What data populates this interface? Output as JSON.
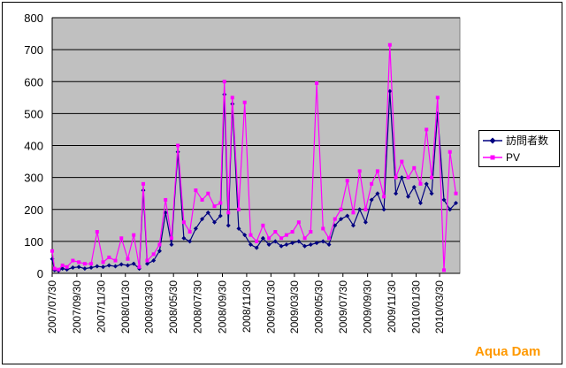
{
  "chart_data": {
    "type": "line",
    "title": "",
    "xlabel": "",
    "ylabel": "",
    "ylim": [
      0,
      800
    ],
    "yticks": [
      0,
      100,
      200,
      300,
      400,
      500,
      600,
      700,
      800
    ],
    "xlim": [
      "2007-07-30",
      "2010-05-20"
    ],
    "xticks": [
      "2007/07/30",
      "2007/09/30",
      "2007/11/30",
      "2008/01/30",
      "2008/03/30",
      "2008/05/30",
      "2008/07/30",
      "2008/09/30",
      "2008/11/30",
      "2009/01/30",
      "2009/03/30",
      "2009/05/30",
      "2009/07/30",
      "2009/09/30",
      "2009/11/30",
      "2010/01/30",
      "2010/03/30"
    ],
    "grid": "horizontal",
    "legend_position": "right",
    "plot_background": "#c0c0c0",
    "series": [
      {
        "name": "訪問者数",
        "color": "#000080",
        "marker": "diamond",
        "points": [
          [
            "2007-07-30",
            45
          ],
          [
            "2007-08-05",
            10
          ],
          [
            "2007-08-15",
            8
          ],
          [
            "2007-08-25",
            15
          ],
          [
            "2007-09-05",
            12
          ],
          [
            "2007-09-20",
            18
          ],
          [
            "2007-10-05",
            20
          ],
          [
            "2007-10-20",
            15
          ],
          [
            "2007-11-05",
            18
          ],
          [
            "2007-11-20",
            22
          ],
          [
            "2007-12-05",
            20
          ],
          [
            "2007-12-20",
            25
          ],
          [
            "2008-01-05",
            22
          ],
          [
            "2008-01-20",
            28
          ],
          [
            "2008-02-05",
            25
          ],
          [
            "2008-02-20",
            30
          ],
          [
            "2008-03-05",
            15
          ],
          [
            "2008-03-15",
            260
          ],
          [
            "2008-03-25",
            30
          ],
          [
            "2008-04-10",
            40
          ],
          [
            "2008-04-25",
            70
          ],
          [
            "2008-05-10",
            190
          ],
          [
            "2008-05-25",
            90
          ],
          [
            "2008-06-10",
            380
          ],
          [
            "2008-06-25",
            110
          ],
          [
            "2008-07-10",
            100
          ],
          [
            "2008-07-25",
            140
          ],
          [
            "2008-08-10",
            170
          ],
          [
            "2008-08-25",
            190
          ],
          [
            "2008-09-10",
            160
          ],
          [
            "2008-09-25",
            180
          ],
          [
            "2008-10-05",
            560
          ],
          [
            "2008-10-15",
            150
          ],
          [
            "2008-10-25",
            530
          ],
          [
            "2008-11-10",
            140
          ],
          [
            "2008-11-25",
            120
          ],
          [
            "2008-12-10",
            90
          ],
          [
            "2008-12-25",
            80
          ],
          [
            "2009-01-10",
            110
          ],
          [
            "2009-01-25",
            90
          ],
          [
            "2009-02-10",
            100
          ],
          [
            "2009-02-25",
            85
          ],
          [
            "2009-03-10",
            90
          ],
          [
            "2009-03-25",
            95
          ],
          [
            "2009-04-10",
            100
          ],
          [
            "2009-04-25",
            85
          ],
          [
            "2009-05-10",
            90
          ],
          [
            "2009-05-25",
            95
          ],
          [
            "2009-06-10",
            100
          ],
          [
            "2009-06-25",
            90
          ],
          [
            "2009-07-10",
            150
          ],
          [
            "2009-07-25",
            170
          ],
          [
            "2009-08-10",
            180
          ],
          [
            "2009-08-25",
            150
          ],
          [
            "2009-09-10",
            200
          ],
          [
            "2009-09-25",
            160
          ],
          [
            "2009-10-10",
            230
          ],
          [
            "2009-10-25",
            250
          ],
          [
            "2009-11-10",
            200
          ],
          [
            "2009-11-25",
            570
          ],
          [
            "2009-12-10",
            250
          ],
          [
            "2009-12-25",
            300
          ],
          [
            "2010-01-10",
            240
          ],
          [
            "2010-01-25",
            270
          ],
          [
            "2010-02-10",
            220
          ],
          [
            "2010-02-25",
            280
          ],
          [
            "2010-03-10",
            250
          ],
          [
            "2010-03-25",
            500
          ],
          [
            "2010-04-10",
            230
          ],
          [
            "2010-04-25",
            200
          ],
          [
            "2010-05-10",
            220
          ]
        ]
      },
      {
        "name": "PV",
        "color": "#ff00ff",
        "marker": "square",
        "points": [
          [
            "2007-07-30",
            70
          ],
          [
            "2007-08-05",
            15
          ],
          [
            "2007-08-15",
            12
          ],
          [
            "2007-08-25",
            25
          ],
          [
            "2007-09-05",
            20
          ],
          [
            "2007-09-20",
            40
          ],
          [
            "2007-10-05",
            35
          ],
          [
            "2007-10-20",
            30
          ],
          [
            "2007-11-05",
            30
          ],
          [
            "2007-11-20",
            130
          ],
          [
            "2007-12-05",
            35
          ],
          [
            "2007-12-20",
            50
          ],
          [
            "2008-01-05",
            40
          ],
          [
            "2008-01-20",
            110
          ],
          [
            "2008-02-05",
            45
          ],
          [
            "2008-02-20",
            120
          ],
          [
            "2008-03-05",
            20
          ],
          [
            "2008-03-15",
            280
          ],
          [
            "2008-03-25",
            40
          ],
          [
            "2008-04-10",
            60
          ],
          [
            "2008-04-25",
            90
          ],
          [
            "2008-05-10",
            230
          ],
          [
            "2008-05-25",
            110
          ],
          [
            "2008-06-10",
            400
          ],
          [
            "2008-06-25",
            160
          ],
          [
            "2008-07-10",
            130
          ],
          [
            "2008-07-25",
            260
          ],
          [
            "2008-08-10",
            230
          ],
          [
            "2008-08-25",
            250
          ],
          [
            "2008-09-10",
            210
          ],
          [
            "2008-09-25",
            220
          ],
          [
            "2008-10-05",
            600
          ],
          [
            "2008-10-15",
            190
          ],
          [
            "2008-10-25",
            550
          ],
          [
            "2008-11-10",
            200
          ],
          [
            "2008-11-25",
            535
          ],
          [
            "2008-12-10",
            120
          ],
          [
            "2008-12-25",
            100
          ],
          [
            "2009-01-10",
            150
          ],
          [
            "2009-01-25",
            110
          ],
          [
            "2009-02-10",
            130
          ],
          [
            "2009-02-25",
            110
          ],
          [
            "2009-03-10",
            120
          ],
          [
            "2009-03-25",
            130
          ],
          [
            "2009-04-10",
            160
          ],
          [
            "2009-04-25",
            110
          ],
          [
            "2009-05-10",
            130
          ],
          [
            "2009-05-25",
            595
          ],
          [
            "2009-06-10",
            140
          ],
          [
            "2009-06-25",
            110
          ],
          [
            "2009-07-10",
            170
          ],
          [
            "2009-07-25",
            200
          ],
          [
            "2009-08-10",
            290
          ],
          [
            "2009-08-25",
            190
          ],
          [
            "2009-09-10",
            320
          ],
          [
            "2009-09-25",
            200
          ],
          [
            "2009-10-10",
            280
          ],
          [
            "2009-10-25",
            320
          ],
          [
            "2009-11-10",
            240
          ],
          [
            "2009-11-25",
            715
          ],
          [
            "2009-12-10",
            300
          ],
          [
            "2009-12-25",
            350
          ],
          [
            "2010-01-10",
            300
          ],
          [
            "2010-01-25",
            330
          ],
          [
            "2010-02-10",
            280
          ],
          [
            "2010-02-25",
            450
          ],
          [
            "2010-03-10",
            300
          ],
          [
            "2010-03-25",
            550
          ],
          [
            "2010-04-10",
            10
          ],
          [
            "2010-04-25",
            380
          ],
          [
            "2010-05-10",
            250
          ]
        ]
      }
    ]
  },
  "watermark": "Aqua Dam"
}
